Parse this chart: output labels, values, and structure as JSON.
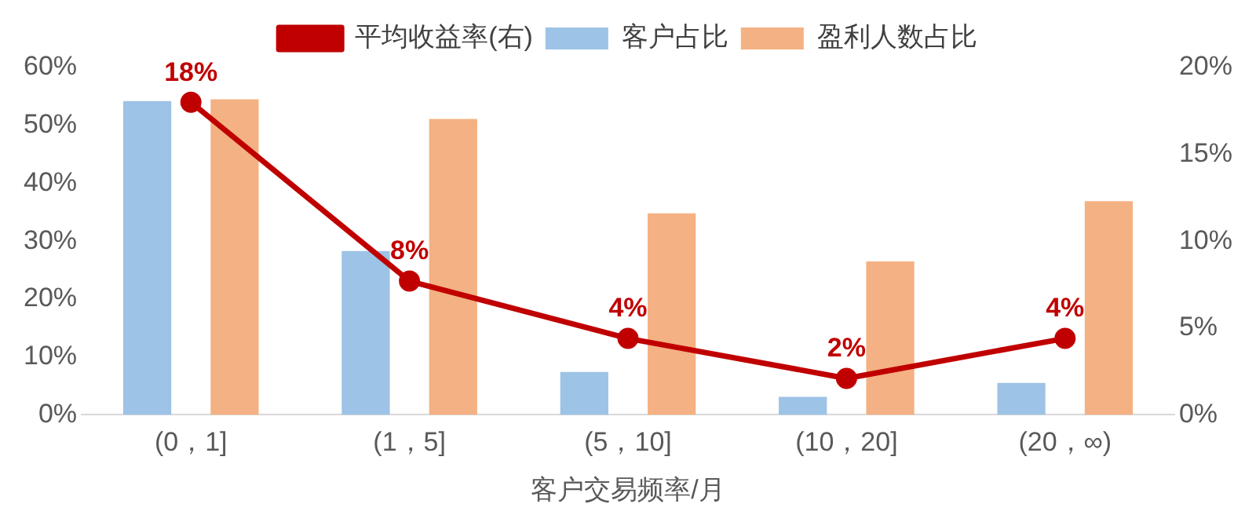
{
  "chart_data": {
    "type": "bar",
    "xlabel": "客户交易频率/月",
    "categories": [
      "(0，1]",
      "(1，5]",
      "(5，10]",
      "(10，20]",
      "(20，∞)"
    ],
    "series": [
      {
        "name": "客户占比",
        "color": "#9dc3e6",
        "values": [
          54.2,
          28.3,
          7.4,
          3.1,
          5.5
        ]
      },
      {
        "name": "盈利人数占比",
        "color": "#f4b183",
        "values": [
          54.5,
          51.1,
          34.8,
          26.5,
          36.9
        ]
      },
      {
        "name": "平均收益率(右)",
        "type": "line",
        "axis": "y2",
        "color": "#c00000",
        "marker": "circle",
        "values": [
          18,
          7.7,
          4.4,
          2.1,
          4.4
        ],
        "value_labels": [
          "18%",
          "8%",
          "4%",
          "2%",
          "4%"
        ]
      }
    ],
    "ylim": [
      0,
      60
    ],
    "yticks": [
      {
        "value": 0,
        "label": "0%"
      },
      {
        "value": 10,
        "label": "10%"
      },
      {
        "value": 20,
        "label": "20%"
      },
      {
        "value": 30,
        "label": "30%"
      },
      {
        "value": 40,
        "label": "40%"
      },
      {
        "value": 50,
        "label": "50%"
      },
      {
        "value": 60,
        "label": "60%"
      }
    ],
    "y2lim": [
      0,
      20
    ],
    "y2ticks": [
      {
        "value": 0,
        "label": "0%"
      },
      {
        "value": 5,
        "label": "5%"
      },
      {
        "value": 10,
        "label": "10%"
      },
      {
        "value": 15,
        "label": "15%"
      },
      {
        "value": 20,
        "label": "20%"
      }
    ],
    "grid": false,
    "legend": "top"
  }
}
